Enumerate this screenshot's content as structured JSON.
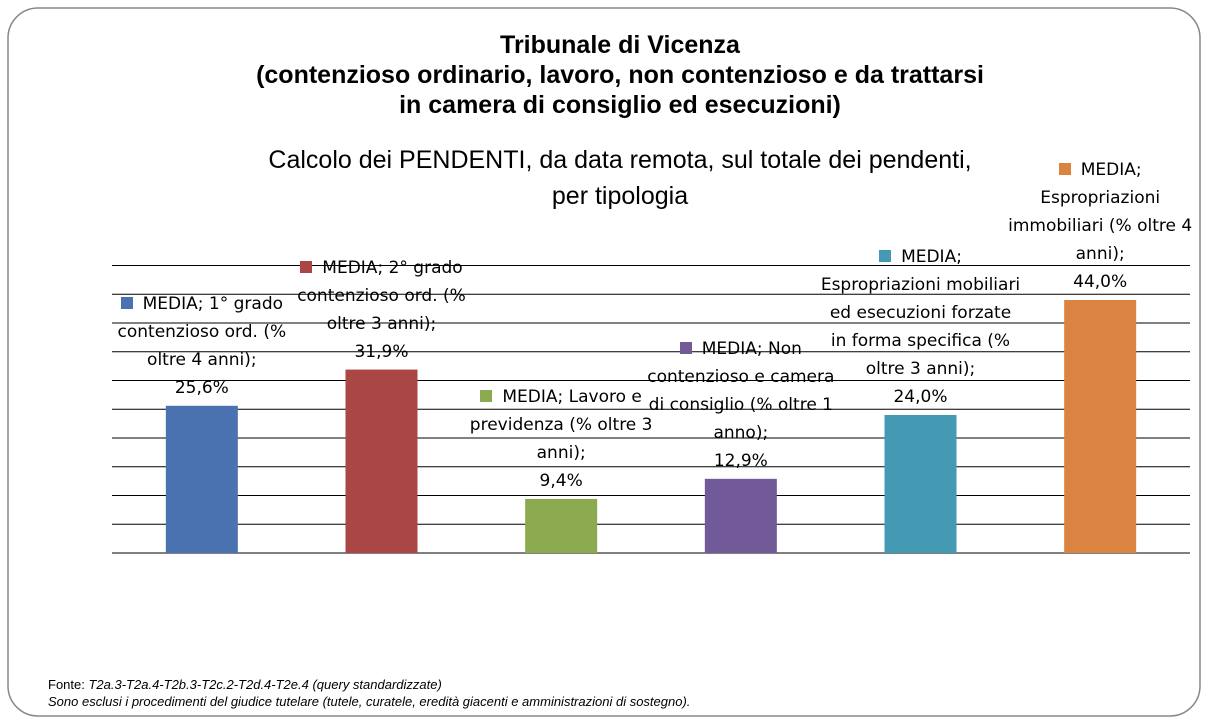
{
  "chart_data": {
    "type": "bar",
    "title": "Tribunale di Vicenza\n(contenzioso ordinario, lavoro, non contenzioso e da trattarsi\nin camera di consiglio ed esecuzioni)",
    "subtitle": "Calcolo dei PENDENTI, da data remota, sul totale dei pendenti,\nper tipologia",
    "categories": [
      "MEDIA; 1° grado contenzioso ord. (% oltre 4 anni);",
      "MEDIA; 2° grado contenzioso ord. (% oltre 3 anni);",
      "MEDIA; Lavoro e previdenza (% oltre 3 anni);",
      "MEDIA; Non contenzioso e camera di consiglio (% oltre 1 anno);",
      "MEDIA; Espropriazioni mobiliari ed esecuzioni forzate in forma specifica (% oltre 3 anni);",
      "MEDIA; Espropriazioni immobiliari (% oltre 4 anni);"
    ],
    "values": [
      25.6,
      31.9,
      9.4,
      12.9,
      24.0,
      44.0
    ],
    "value_labels": [
      "25,6%",
      "31,9%",
      "9,4%",
      "12,9%",
      "24,0%",
      "44,0%"
    ],
    "colors": [
      "#4a72b0",
      "#aa4644",
      "#8ba94f",
      "#725997",
      "#4499b3",
      "#db8340"
    ],
    "ylim": [
      0,
      50
    ],
    "yticks": [
      0,
      5,
      10,
      15,
      20,
      25,
      30,
      35,
      40,
      45,
      50
    ],
    "grid": true
  },
  "footer": {
    "source_label": "Fonte:",
    "source": "T2a.3-T2a.4-T2b.3-T2c.2-T2d.4-T2e.4 (query standardizzate)",
    "note": "Sono esclusi i procedimenti del giudice tutelare (tutele, curatele, eredità giacenti e amministrazioni di sostegno)."
  }
}
